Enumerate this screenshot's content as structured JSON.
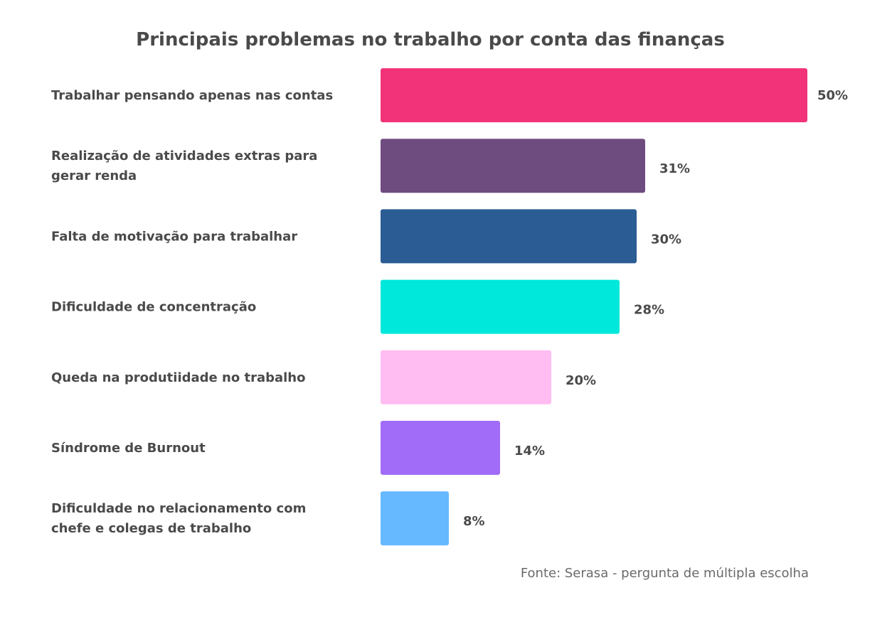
{
  "chart_data": {
    "type": "bar",
    "orientation": "horizontal",
    "title": "Principais problemas no trabalho por conta das finanças",
    "categories": [
      [
        "Trabalhar pensando apenas nas contas"
      ],
      [
        "Realização de atividades extras para",
        "gerar renda"
      ],
      [
        "Falta de motivação para trabalhar"
      ],
      [
        "Dificuldade de concentração"
      ],
      [
        "Queda na produtiidade no trabalho"
      ],
      [
        "Síndrome de Burnout"
      ],
      [
        "Dificuldade no relacionamento com",
        "chefe e colegas de trabalho"
      ]
    ],
    "values": [
      50,
      31,
      30,
      28,
      20,
      14,
      8
    ],
    "value_labels": [
      "50%",
      "31%",
      "30%",
      "28%",
      "20%",
      "14%",
      "8%"
    ],
    "colors": [
      "#f23379",
      "#6e4c80",
      "#2b5c94",
      "#00e8dc",
      "#ffbdf2",
      "#a16cf7",
      "#66b8ff"
    ],
    "xlim": [
      0,
      50
    ],
    "grid": false,
    "legend": "none",
    "source": "Fonte: Serasa - pergunta de múltipla escolha"
  }
}
